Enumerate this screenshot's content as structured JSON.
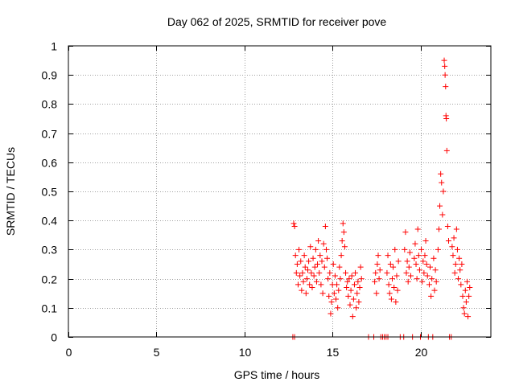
{
  "chart_data": {
    "type": "scatter",
    "title": "Day 062 of 2025, SRMTID for receiver pove",
    "xlabel": "GPS time / hours",
    "ylabel": "SRMTID / TECUs",
    "xlim": [
      0,
      24
    ],
    "ylim": [
      0,
      1
    ],
    "xticks": [
      0,
      5,
      10,
      15,
      20
    ],
    "xtick_labels": [
      "0",
      "5",
      "10",
      "15",
      "20"
    ],
    "yticks": [
      0,
      0.1,
      0.2,
      0.3,
      0.4,
      0.5,
      0.6,
      0.7,
      0.8,
      0.9,
      1
    ],
    "ytick_labels": [
      "0",
      "0.1",
      "0.2",
      "0.3",
      "0.4",
      "0.5",
      "0.6",
      "0.7",
      "0.8",
      "0.9",
      "1"
    ],
    "grid": true,
    "marker": "+",
    "colors": {
      "series": "#ff0000",
      "grid": "#a0a0a0",
      "axis": "#000000"
    },
    "series": [
      {
        "name": "SRMTID",
        "points": [
          [
            12.75,
            0.0
          ],
          [
            12.85,
            0.0
          ],
          [
            12.8,
            0.39
          ],
          [
            12.85,
            0.38
          ],
          [
            12.9,
            0.28
          ],
          [
            12.95,
            0.22
          ],
          [
            13.0,
            0.25
          ],
          [
            13.05,
            0.18
          ],
          [
            13.1,
            0.3
          ],
          [
            13.15,
            0.21
          ],
          [
            13.2,
            0.26
          ],
          [
            13.25,
            0.16
          ],
          [
            13.3,
            0.22
          ],
          [
            13.35,
            0.19
          ],
          [
            13.4,
            0.28
          ],
          [
            13.45,
            0.24
          ],
          [
            13.5,
            0.15
          ],
          [
            13.55,
            0.2
          ],
          [
            13.6,
            0.23
          ],
          [
            13.65,
            0.26
          ],
          [
            13.7,
            0.18
          ],
          [
            13.75,
            0.31
          ],
          [
            13.8,
            0.22
          ],
          [
            13.85,
            0.17
          ],
          [
            13.9,
            0.27
          ],
          [
            13.95,
            0.21
          ],
          [
            14.0,
            0.24
          ],
          [
            14.05,
            0.3
          ],
          [
            14.1,
            0.19
          ],
          [
            14.15,
            0.25
          ],
          [
            14.2,
            0.33
          ],
          [
            14.25,
            0.22
          ],
          [
            14.3,
            0.28
          ],
          [
            14.35,
            0.18
          ],
          [
            14.4,
            0.26
          ],
          [
            14.45,
            0.15
          ],
          [
            14.5,
            0.32
          ],
          [
            14.55,
            0.24
          ],
          [
            14.6,
            0.38
          ],
          [
            14.65,
            0.3
          ],
          [
            14.7,
            0.27
          ],
          [
            14.75,
            0.2
          ],
          [
            14.8,
            0.14
          ],
          [
            14.85,
            0.22
          ],
          [
            14.9,
            0.08
          ],
          [
            14.95,
            0.12
          ],
          [
            15.0,
            0.18
          ],
          [
            15.05,
            0.25
          ],
          [
            15.1,
            0.15
          ],
          [
            15.15,
            0.21
          ],
          [
            15.2,
            0.13
          ],
          [
            15.25,
            0.18
          ],
          [
            15.3,
            0.1
          ],
          [
            15.35,
            0.16
          ],
          [
            15.4,
            0.24
          ],
          [
            15.45,
            0.2
          ],
          [
            15.5,
            0.28
          ],
          [
            15.55,
            0.33
          ],
          [
            15.6,
            0.39
          ],
          [
            15.65,
            0.36
          ],
          [
            15.7,
            0.31
          ],
          [
            15.75,
            0.22
          ],
          [
            15.8,
            0.17
          ],
          [
            15.85,
            0.19
          ],
          [
            15.9,
            0.14
          ],
          [
            15.95,
            0.2
          ],
          [
            16.0,
            0.11
          ],
          [
            16.05,
            0.16
          ],
          [
            16.1,
            0.21
          ],
          [
            16.15,
            0.07
          ],
          [
            16.2,
            0.13
          ],
          [
            16.25,
            0.18
          ],
          [
            16.3,
            0.22
          ],
          [
            16.35,
            0.1
          ],
          [
            16.4,
            0.15
          ],
          [
            16.45,
            0.19
          ],
          [
            16.5,
            0.12
          ],
          [
            16.55,
            0.17
          ],
          [
            16.6,
            0.24
          ],
          [
            16.65,
            0.2
          ],
          [
            17.05,
            0.0
          ],
          [
            17.35,
            0.0
          ],
          [
            17.4,
            0.19
          ],
          [
            17.45,
            0.22
          ],
          [
            17.5,
            0.15
          ],
          [
            17.55,
            0.25
          ],
          [
            17.6,
            0.28
          ],
          [
            17.65,
            0.2
          ],
          [
            17.7,
            0.23
          ],
          [
            17.75,
            0.0
          ],
          [
            17.85,
            0.0
          ],
          [
            17.95,
            0.0
          ],
          [
            18.05,
            0.0
          ],
          [
            18.15,
            0.0
          ],
          [
            18.1,
            0.22
          ],
          [
            18.15,
            0.28
          ],
          [
            18.2,
            0.18
          ],
          [
            18.25,
            0.15
          ],
          [
            18.3,
            0.25
          ],
          [
            18.35,
            0.13
          ],
          [
            18.4,
            0.2
          ],
          [
            18.45,
            0.24
          ],
          [
            18.5,
            0.17
          ],
          [
            18.55,
            0.3
          ],
          [
            18.6,
            0.12
          ],
          [
            18.65,
            0.21
          ],
          [
            18.7,
            0.16
          ],
          [
            18.75,
            0.26
          ],
          [
            18.85,
            0.0
          ],
          [
            19.05,
            0.0
          ],
          [
            19.1,
            0.3
          ],
          [
            19.15,
            0.36
          ],
          [
            19.2,
            0.22
          ],
          [
            19.25,
            0.26
          ],
          [
            19.3,
            0.19
          ],
          [
            19.35,
            0.24
          ],
          [
            19.4,
            0.29
          ],
          [
            19.45,
            0.21
          ],
          [
            19.55,
            0.0
          ],
          [
            19.65,
            0.27
          ],
          [
            19.7,
            0.32
          ],
          [
            19.75,
            0.25
          ],
          [
            19.8,
            0.2
          ],
          [
            19.85,
            0.37
          ],
          [
            19.9,
            0.28
          ],
          [
            19.95,
            0.23
          ],
          [
            20.0,
            0.0
          ],
          [
            20.05,
            0.3
          ],
          [
            20.1,
            0.19
          ],
          [
            20.15,
            0.26
          ],
          [
            20.2,
            0.22
          ],
          [
            20.25,
            0.28
          ],
          [
            20.3,
            0.33
          ],
          [
            20.35,
            0.25
          ],
          [
            20.4,
            0.21
          ],
          [
            20.45,
            0.0
          ],
          [
            20.5,
            0.18
          ],
          [
            20.55,
            0.24
          ],
          [
            20.6,
            0.14
          ],
          [
            20.65,
            0.2
          ],
          [
            20.7,
            0.0
          ],
          [
            20.75,
            0.27
          ],
          [
            20.8,
            0.16
          ],
          [
            20.85,
            0.23
          ],
          [
            20.9,
            0.19
          ],
          [
            21.0,
            0.3
          ],
          [
            21.05,
            0.37
          ],
          [
            21.1,
            0.45
          ],
          [
            21.15,
            0.56
          ],
          [
            21.2,
            0.53
          ],
          [
            21.25,
            0.42
          ],
          [
            21.3,
            0.5
          ],
          [
            21.35,
            0.95
          ],
          [
            21.38,
            0.93
          ],
          [
            21.4,
            0.9
          ],
          [
            21.43,
            0.86
          ],
          [
            21.45,
            0.76
          ],
          [
            21.47,
            0.75
          ],
          [
            21.5,
            0.64
          ],
          [
            21.55,
            0.38
          ],
          [
            21.6,
            0.33
          ],
          [
            21.65,
            0.0
          ],
          [
            21.75,
            0.0
          ],
          [
            21.8,
            0.31
          ],
          [
            21.85,
            0.28
          ],
          [
            21.9,
            0.34
          ],
          [
            21.95,
            0.22
          ],
          [
            22.0,
            0.25
          ],
          [
            22.05,
            0.37
          ],
          [
            22.1,
            0.3
          ],
          [
            22.15,
            0.2
          ],
          [
            22.2,
            0.27
          ],
          [
            22.25,
            0.23
          ],
          [
            22.3,
            0.18
          ],
          [
            22.35,
            0.25
          ],
          [
            22.4,
            0.14
          ],
          [
            22.45,
            0.1
          ],
          [
            22.5,
            0.08
          ],
          [
            22.55,
            0.16
          ],
          [
            22.6,
            0.12
          ],
          [
            22.65,
            0.19
          ],
          [
            22.7,
            0.07
          ],
          [
            22.75,
            0.14
          ],
          [
            22.8,
            0.17
          ]
        ]
      }
    ]
  }
}
